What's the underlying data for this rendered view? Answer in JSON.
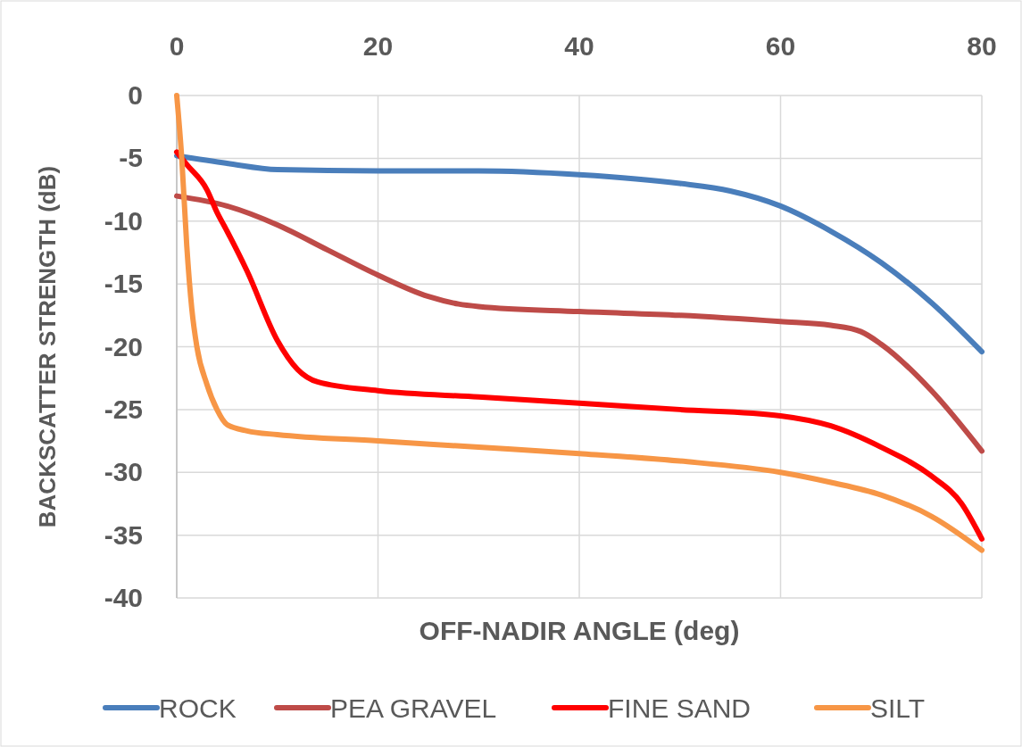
{
  "chart_data": {
    "type": "line",
    "xlabel": "OFF-NADIR ANGLE (deg)",
    "ylabel": "BACKSCATTER STRENGTH (dB)",
    "xlim": [
      0,
      80
    ],
    "xticks": [
      0,
      20,
      40,
      60,
      80
    ],
    "ylim": [
      -40,
      0
    ],
    "yticks": [
      0,
      -5,
      -10,
      -15,
      -20,
      -25,
      -30,
      -35,
      -40
    ],
    "grid": true,
    "legend": "bottom",
    "marker": "none",
    "line_style": "solid",
    "series": [
      {
        "name": "ROCK",
        "color": "#4a7ebb",
        "x": [
          0,
          5,
          10,
          20,
          30,
          40,
          50,
          55,
          60,
          65,
          70,
          75,
          80
        ],
        "values": [
          -4.8,
          -5.4,
          -5.9,
          -6.0,
          -6.0,
          -6.3,
          -7.0,
          -7.6,
          -8.8,
          -10.8,
          -13.3,
          -16.5,
          -20.4
        ]
      },
      {
        "name": "PEA GRAVEL",
        "color": "#be4b48",
        "x": [
          0,
          5,
          10,
          15,
          20,
          25,
          28,
          30,
          40,
          50,
          60,
          65,
          68,
          70,
          75,
          80
        ],
        "values": [
          -8,
          -8.8,
          -10.3,
          -12.3,
          -14.3,
          -16.0,
          -16.6,
          -16.8,
          -17.2,
          -17.5,
          -18.0,
          -18.3,
          -18.8,
          -19.8,
          -23.5,
          -28.3
        ]
      },
      {
        "name": "FINE SAND",
        "color": "#ff0000",
        "x": [
          0,
          1,
          3,
          4,
          5,
          7,
          10,
          12,
          14,
          20,
          30,
          40,
          50,
          60,
          65,
          70,
          75,
          78,
          80
        ],
        "values": [
          -4.5,
          -5.5,
          -7.5,
          -9.3,
          -10.8,
          -14,
          -19.5,
          -21.8,
          -22.8,
          -23.5,
          -24,
          -24.5,
          -25,
          -25.5,
          -26.3,
          -28,
          -30.3,
          -32.5,
          -35.3
        ]
      },
      {
        "name": "SILT",
        "color": "#f79646",
        "x": [
          0,
          0.5,
          1,
          1.5,
          2,
          3,
          4,
          5,
          7,
          10,
          20,
          30,
          40,
          50,
          60,
          65,
          70,
          75,
          80
        ],
        "values": [
          0,
          -5,
          -12,
          -17,
          -20,
          -23,
          -25,
          -26.2,
          -26.7,
          -27,
          -27.5,
          -28,
          -28.5,
          -29.1,
          -30,
          -30.8,
          -31.8,
          -33.5,
          -36.2
        ]
      }
    ]
  }
}
